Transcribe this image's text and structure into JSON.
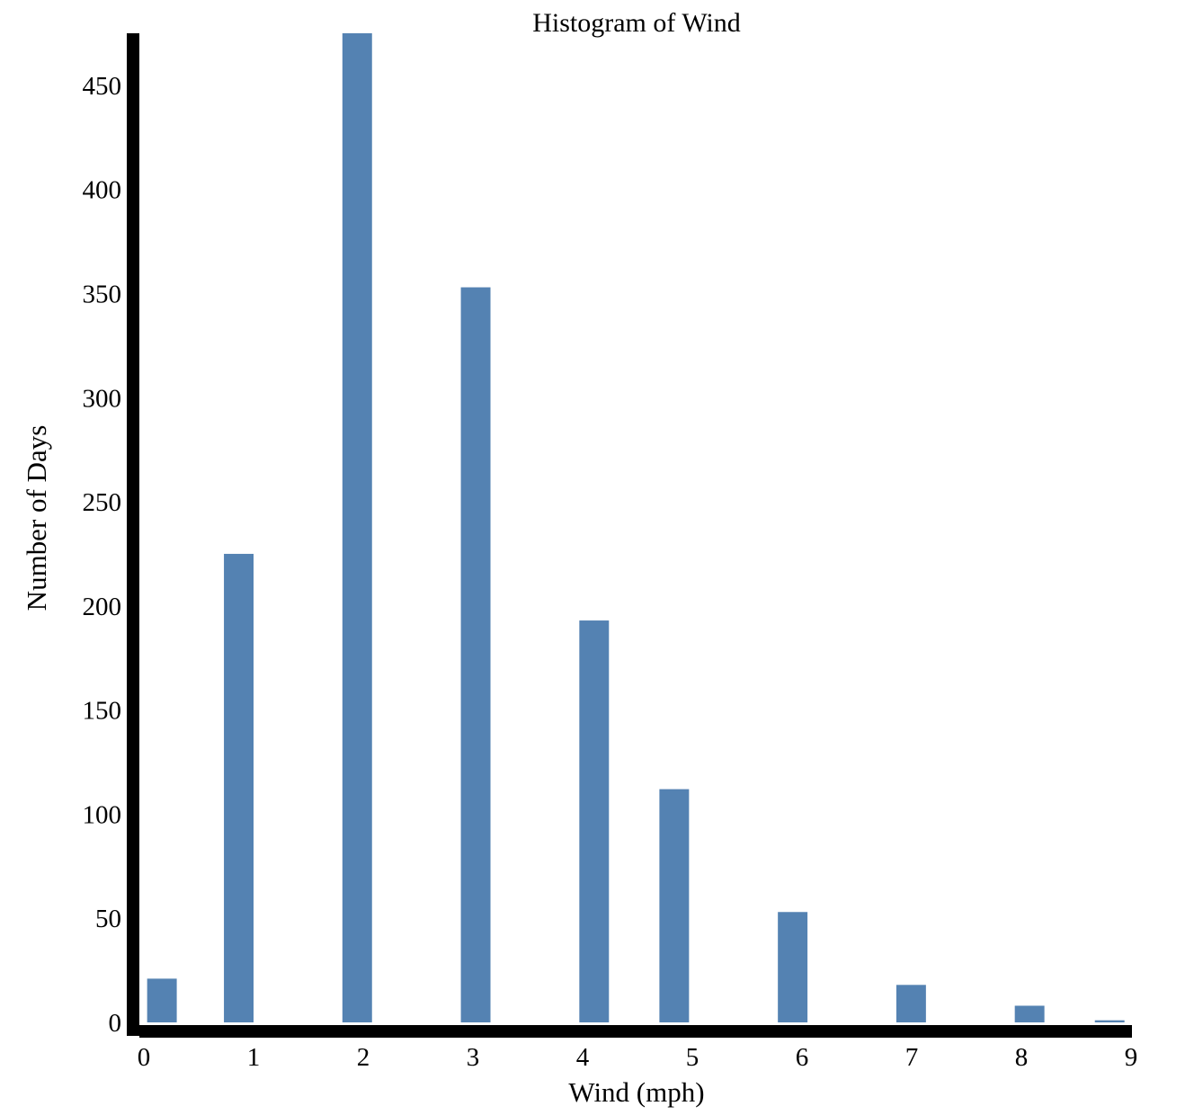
{
  "chart_data": {
    "type": "bar",
    "title": "Histogram of Wind",
    "xlabel": "Wind (mph)",
    "ylabel": "Number of Days",
    "xlim": [
      0,
      9
    ],
    "ylim": [
      0,
      475
    ],
    "x_ticks": [
      "0",
      "1",
      "2",
      "3",
      "4",
      "5",
      "6",
      "7",
      "8",
      "9"
    ],
    "y_ticks": [
      "0",
      "50",
      "100",
      "150",
      "200",
      "250",
      "300",
      "350",
      "400",
      "450"
    ],
    "bins": [
      {
        "x0": 0.03,
        "x1": 0.3,
        "value": 21
      },
      {
        "x0": 0.73,
        "x1": 1.0,
        "value": 225
      },
      {
        "x0": 1.81,
        "x1": 2.08,
        "value": 476
      },
      {
        "x0": 2.89,
        "x1": 3.16,
        "value": 353
      },
      {
        "x0": 3.97,
        "x1": 4.24,
        "value": 193
      },
      {
        "x0": 4.7,
        "x1": 4.97,
        "value": 112
      },
      {
        "x0": 5.78,
        "x1": 6.05,
        "value": 53
      },
      {
        "x0": 6.86,
        "x1": 7.13,
        "value": 18
      },
      {
        "x0": 7.94,
        "x1": 8.21,
        "value": 8
      },
      {
        "x0": 8.67,
        "x1": 8.94,
        "value": 1
      }
    ],
    "grid": false,
    "legend": "none",
    "bar_color": "#5482b2",
    "axis_color": "#000000"
  }
}
